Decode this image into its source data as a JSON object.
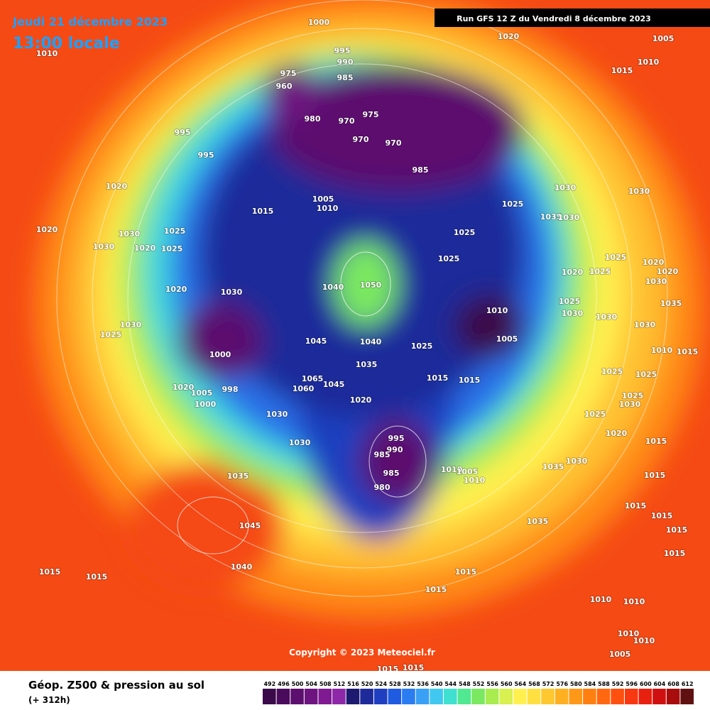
{
  "header": {
    "date": "Jeudi 21 décembre 2023",
    "time": "13:00 locale",
    "run": "Run GFS 12 Z du Vendredi 8 décembre 2023"
  },
  "copyright": "Copyright © 2023 Meteociel.fr",
  "legend": {
    "title": "Géop. Z500 & pression au sol",
    "lead": "(+ 312h)",
    "values": [
      492,
      496,
      500,
      504,
      508,
      512,
      516,
      520,
      524,
      528,
      532,
      536,
      540,
      544,
      548,
      552,
      556,
      560,
      564,
      568,
      572,
      576,
      580,
      584,
      588,
      592,
      596,
      600,
      604,
      608,
      612
    ],
    "colors": [
      "#3a0a4a",
      "#4b0b5c",
      "#5c0f6e",
      "#6e1480",
      "#7f1a92",
      "#8e28a8",
      "#1e1a70",
      "#1f2a9a",
      "#1f3fc0",
      "#1f5be0",
      "#2a7cf0",
      "#3aa0f5",
      "#40c8f0",
      "#40e0d0",
      "#50e890",
      "#7ae860",
      "#a8ec50",
      "#d8f050",
      "#fff050",
      "#ffe040",
      "#ffc830",
      "#ffb020",
      "#ff9818",
      "#ff8010",
      "#ff6810",
      "#ff5010",
      "#f83810",
      "#e82010",
      "#d01010",
      "#a80c0c",
      "#601010"
    ]
  },
  "pressure_labels": [
    1000,
    1010,
    995,
    990,
    985,
    975,
    960,
    980,
    970,
    975,
    970,
    970,
    985,
    995,
    995,
    1020,
    1020,
    1030,
    1030,
    1020,
    1025,
    1025,
    1015,
    1005,
    1010,
    1020,
    1005,
    1010,
    1015,
    1030,
    1030,
    1025,
    1035,
    1030,
    1025,
    1025,
    1020,
    1030,
    1040,
    1050,
    1010,
    1005,
    1020,
    1025,
    1025,
    1020,
    1020,
    1030,
    1025,
    1030,
    1030,
    1030,
    1035,
    1010,
    1015,
    1025,
    1030,
    1000,
    1045,
    1040,
    1035,
    1025,
    1015,
    1015,
    1065,
    1060,
    1045,
    1020,
    1005,
    1000,
    998,
    1030,
    1020,
    1030,
    995,
    990,
    985,
    985,
    980,
    1010,
    1005,
    1010,
    1035,
    1045,
    1040,
    1015,
    1015,
    1025,
    1025,
    1025,
    1030,
    1025,
    1020,
    1015,
    1035,
    1030,
    1015,
    1015,
    1015,
    1015,
    1015,
    1035,
    1015,
    1015,
    1010,
    1010,
    1010,
    1010,
    1005,
    1015,
    1015
  ]
}
